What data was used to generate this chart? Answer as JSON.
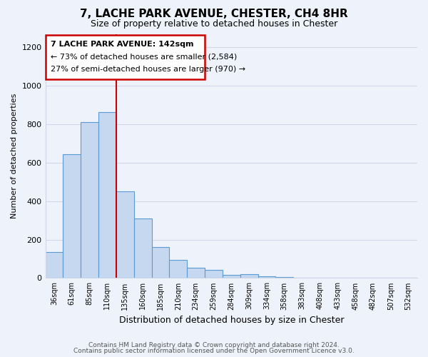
{
  "title": "7, LACHE PARK AVENUE, CHESTER, CH4 8HR",
  "subtitle": "Size of property relative to detached houses in Chester",
  "xlabel": "Distribution of detached houses by size in Chester",
  "ylabel": "Number of detached properties",
  "bar_labels": [
    "36sqm",
    "61sqm",
    "85sqm",
    "110sqm",
    "135sqm",
    "160sqm",
    "185sqm",
    "210sqm",
    "234sqm",
    "259sqm",
    "284sqm",
    "309sqm",
    "334sqm",
    "358sqm",
    "383sqm",
    "408sqm",
    "433sqm",
    "458sqm",
    "482sqm",
    "507sqm",
    "532sqm"
  ],
  "bar_values": [
    135,
    645,
    810,
    865,
    450,
    310,
    160,
    95,
    55,
    42,
    15,
    20,
    8,
    5,
    2,
    1,
    1,
    0,
    0,
    0,
    2
  ],
  "bar_color": "#c5d8f0",
  "bar_edge_color": "#5b9bd5",
  "ylim": [
    0,
    1270
  ],
  "yticks": [
    0,
    200,
    400,
    600,
    800,
    1000,
    1200
  ],
  "red_line_bar_index": 3,
  "annotation_box_title": "7 LACHE PARK AVENUE: 142sqm",
  "annotation_line1": "← 73% of detached houses are smaller (2,584)",
  "annotation_line2": "27% of semi-detached houses are larger (970) →",
  "annotation_box_color": "#ffffff",
  "annotation_box_edge_color": "#cc0000",
  "footer_line1": "Contains HM Land Registry data © Crown copyright and database right 2024.",
  "footer_line2": "Contains public sector information licensed under the Open Government Licence v3.0.",
  "background_color": "#eef2fa",
  "grid_color": "#d0d8e8"
}
